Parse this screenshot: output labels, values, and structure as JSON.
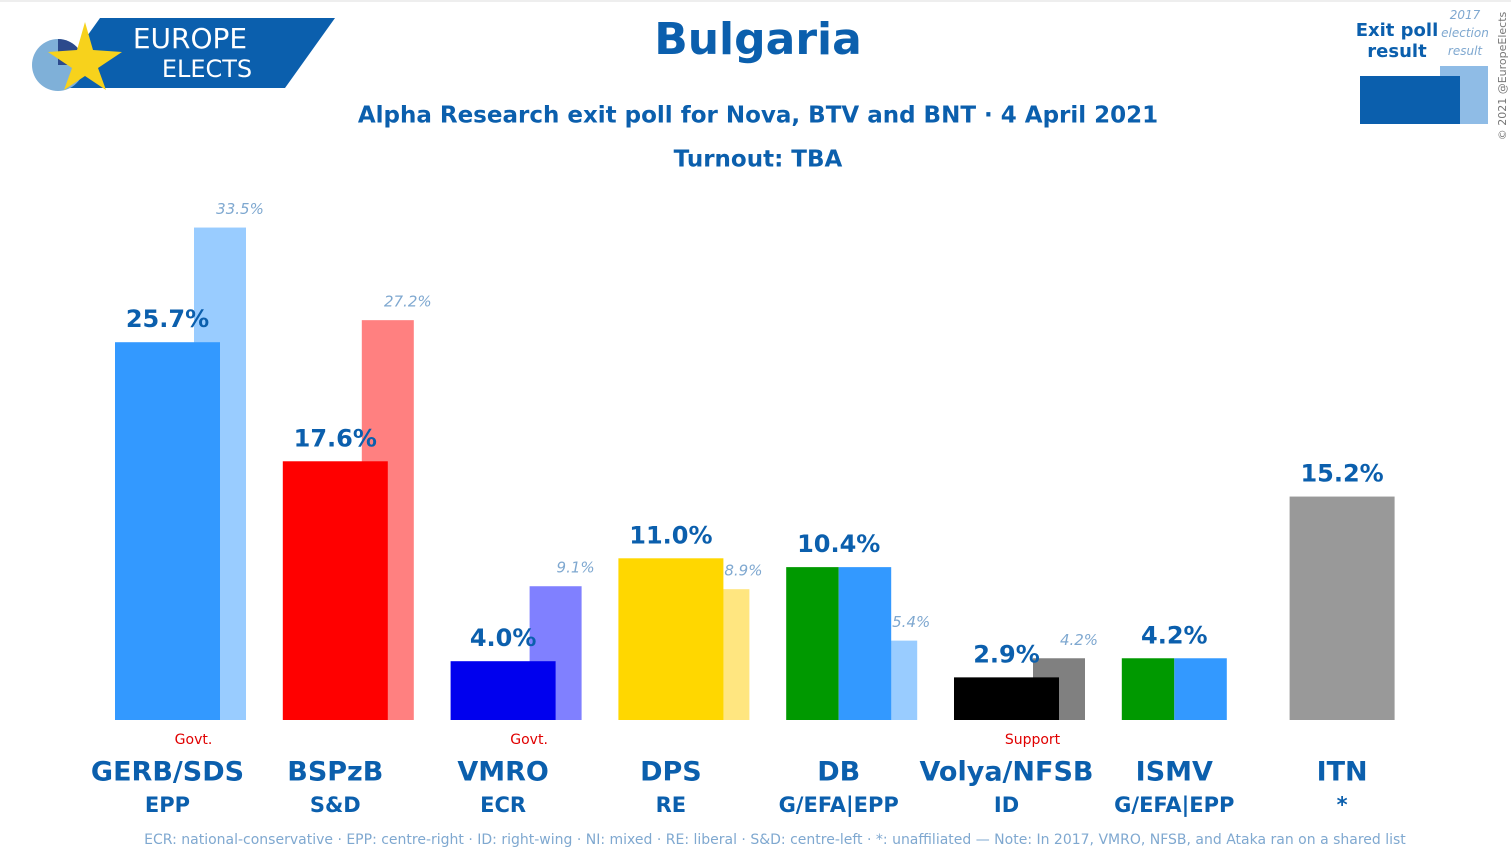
{
  "logo": {
    "top": "EUROPE",
    "bottom": "ELECTS"
  },
  "copyright": "© 2021 @EuropeElects",
  "chart_data": {
    "type": "bar",
    "title": "Bulgaria",
    "subtitle": "Alpha Research exit poll for Nova, BTV and BNT · 4 April 2021",
    "turnout": "Turnout: TBA",
    "categories": [
      "GERB/SDS",
      "BSPzB",
      "VMRO",
      "DPS",
      "DB",
      "Volya/NFSB",
      "ISMV",
      "ITN"
    ],
    "groups": [
      "EPP",
      "S&D",
      "ECR",
      "RE",
      "G/EFA|EPP",
      "ID",
      "G/EFA|EPP",
      "*"
    ],
    "status": [
      "Govt.",
      null,
      "Govt.",
      null,
      null,
      "Support",
      null,
      null
    ],
    "series": [
      {
        "name": "Exit poll result",
        "color": "#0b5fad",
        "values": [
          25.7,
          17.6,
          4.0,
          11.0,
          10.4,
          2.9,
          4.2,
          15.2
        ],
        "value_labels": [
          "25.7%",
          "17.6%",
          "4.0%",
          "11.0%",
          "10.4%",
          "2.9%",
          "4.2%",
          "15.2%"
        ],
        "colors": [
          [
            "#3399ff"
          ],
          [
            "#ff0000"
          ],
          [
            "#0000ee"
          ],
          [
            "#ffd700"
          ],
          [
            "#009900",
            "#3399ff"
          ],
          [
            "#000000"
          ],
          [
            "#009900",
            "#3399ff"
          ],
          [
            "#999999"
          ]
        ]
      },
      {
        "name": "2017 election result",
        "color": "#8fbce6",
        "values": [
          33.5,
          27.2,
          9.1,
          8.9,
          5.4,
          4.2,
          null,
          null
        ],
        "value_labels": [
          "33.5%",
          "27.2%",
          "9.1%",
          "8.9%",
          "5.4%",
          "4.2%",
          null,
          null
        ],
        "colors": [
          "#99ccff",
          "#ff8080",
          "#8080ff",
          "#ffe680",
          "#99ccff",
          "#808080",
          null,
          null
        ]
      }
    ],
    "note": "ECR: national-conservative · EPP: centre-right · ID: right-wing · NI: mixed · RE: liberal · S&D: centre-left · *: unaffiliated — Note: In 2017, VMRO, NFSB, and Ataka ran on a shared list"
  }
}
